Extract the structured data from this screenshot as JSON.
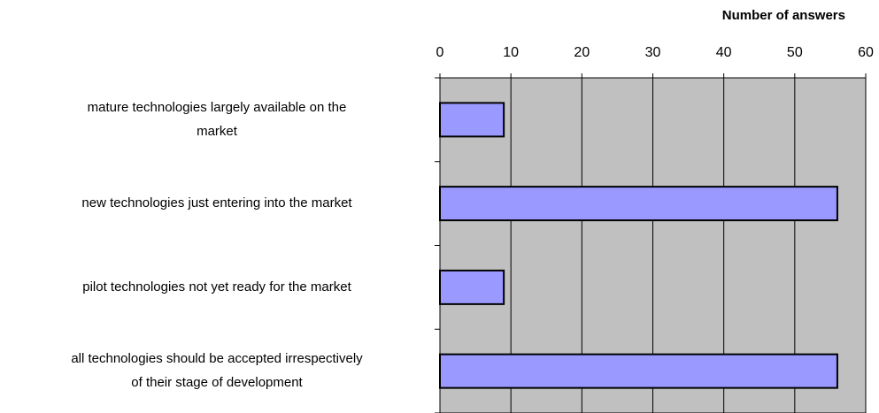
{
  "chart_data": {
    "type": "barh",
    "x_label": "Number of answers",
    "categories": [
      [
        "mature technologies largely available on the",
        "market"
      ],
      [
        "new technologies just entering into the market"
      ],
      [
        "pilot technologies not yet ready for the market"
      ],
      [
        "all technologies should be accepted irrespectively",
        "of their stage of development"
      ]
    ],
    "values": [
      9,
      56,
      9,
      56
    ],
    "color": "#9999ff",
    "xlim": [
      0,
      60
    ],
    "xticks": [
      0,
      10,
      20,
      30,
      40,
      50,
      60
    ],
    "grid": true
  }
}
